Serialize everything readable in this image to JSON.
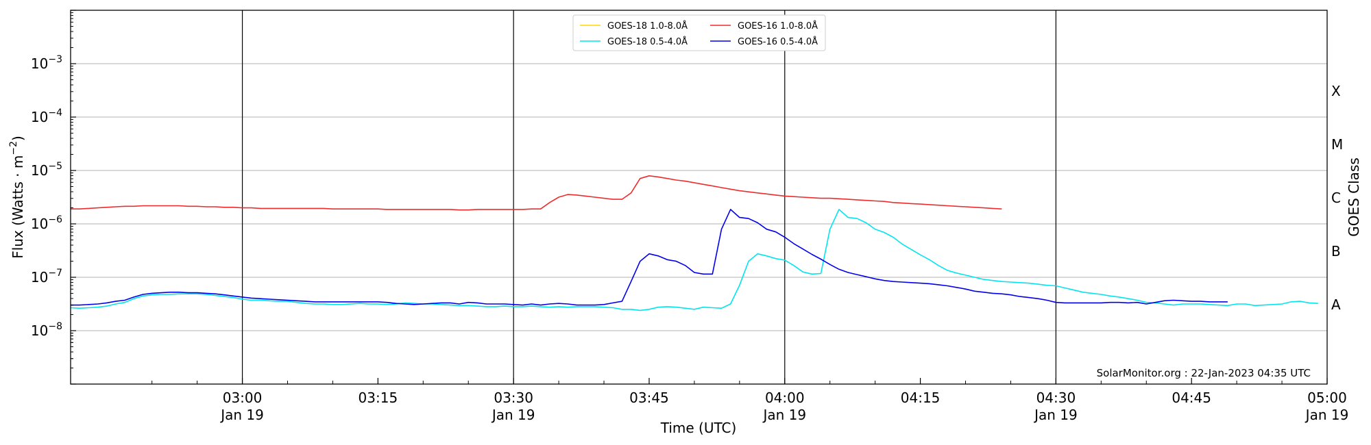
{
  "chart_data": {
    "type": "line",
    "xlabel": "Time (UTC)",
    "ylabel": "Flux (Watts · m",
    "ylabel_sup": "−2",
    "ylabel_close": ")",
    "right_label": "GOES Class",
    "y_scale": "log",
    "ylim": [
      1e-09,
      0.01
    ],
    "xlim_minutes": [
      161,
      300
    ],
    "grid": "y-major",
    "legend_position": "top-center",
    "x_ticks": [
      {
        "minute": 180,
        "time": "03:00",
        "date": "Jan 19"
      },
      {
        "minute": 195,
        "time": "03:15",
        "date": ""
      },
      {
        "minute": 210,
        "time": "03:30",
        "date": "Jan 19"
      },
      {
        "minute": 225,
        "time": "03:45",
        "date": ""
      },
      {
        "minute": 240,
        "time": "04:00",
        "date": "Jan 19"
      },
      {
        "minute": 255,
        "time": "04:15",
        "date": ""
      },
      {
        "minute": 270,
        "time": "04:30",
        "date": "Jan 19"
      },
      {
        "minute": 285,
        "time": "04:45",
        "date": ""
      },
      {
        "minute": 300,
        "time": "05:00",
        "date": "Jan 19"
      }
    ],
    "y_ticks": [
      {
        "exp": -8,
        "base": "10",
        "sup": "−8"
      },
      {
        "exp": -7,
        "base": "10",
        "sup": "−7"
      },
      {
        "exp": -6,
        "base": "10",
        "sup": "−6"
      },
      {
        "exp": -5,
        "base": "10",
        "sup": "−5"
      },
      {
        "exp": -4,
        "base": "10",
        "sup": "−4"
      },
      {
        "exp": -3,
        "base": "10",
        "sup": "−3"
      }
    ],
    "goes_classes": [
      {
        "label": "A",
        "exp": -7.5
      },
      {
        "label": "B",
        "exp": -6.5
      },
      {
        "label": "C",
        "exp": -5.5
      },
      {
        "label": "M",
        "exp": -4.5
      },
      {
        "label": "X",
        "exp": -3.5
      }
    ],
    "vlines_minutes": [
      180,
      210,
      240,
      270
    ],
    "annotation": "SolarMonitor.org : 22-Jan-2023 04:35 UTC",
    "x_minutes": [
      161,
      162,
      163,
      164,
      165,
      166,
      167,
      168,
      169,
      170,
      171,
      172,
      173,
      174,
      175,
      176,
      177,
      178,
      179,
      180,
      181,
      182,
      183,
      184,
      185,
      186,
      187,
      188,
      189,
      190,
      191,
      192,
      193,
      194,
      195,
      196,
      197,
      198,
      199,
      200,
      201,
      202,
      203,
      204,
      205,
      206,
      207,
      208,
      209,
      210,
      211,
      212,
      213,
      214,
      215,
      216,
      217,
      218,
      219,
      220,
      221,
      222,
      223,
      224,
      225,
      226,
      227,
      228,
      229,
      230,
      231,
      232,
      233,
      234,
      235,
      236,
      237,
      238,
      239,
      240,
      241,
      242,
      243,
      244,
      245,
      246,
      247,
      248,
      249,
      250,
      251,
      252,
      253,
      254,
      255,
      256,
      257,
      258,
      259,
      260,
      261,
      262,
      263,
      264,
      265,
      266,
      267,
      268,
      269,
      270,
      271,
      272,
      273,
      274,
      275,
      276,
      277,
      278,
      279,
      280,
      281,
      282,
      283,
      284,
      285,
      286,
      287,
      288,
      289,
      290,
      291,
      292,
      293,
      294,
      295,
      296,
      297,
      298,
      299
    ],
    "series": [
      {
        "name": "GOES-18 1.0-8.0Å",
        "color": "#ffd700",
        "log_values": []
      },
      {
        "name": "GOES-18 0.5-4.0Å",
        "color": "#00e5ee",
        "log_values": [
          -7.57,
          -7.58,
          -7.57,
          -7.56,
          -7.54,
          -7.5,
          -7.47,
          -7.4,
          -7.35,
          -7.33,
          -7.32,
          -7.32,
          -7.31,
          -7.31,
          -7.31,
          -7.32,
          -7.34,
          -7.36,
          -7.38,
          -7.41,
          -7.43,
          -7.43,
          -7.44,
          -7.45,
          -7.45,
          -7.47,
          -7.49,
          -7.5,
          -7.5,
          -7.51,
          -7.51,
          -7.5,
          -7.49,
          -7.5,
          -7.5,
          -7.51,
          -7.5,
          -7.48,
          -7.49,
          -7.5,
          -7.5,
          -7.51,
          -7.52,
          -7.53,
          -7.53,
          -7.54,
          -7.55,
          -7.55,
          -7.54,
          -7.55,
          -7.55,
          -7.54,
          -7.55,
          -7.56,
          -7.55,
          -7.56,
          -7.55,
          -7.55,
          -7.55,
          -7.56,
          -7.57,
          -7.6,
          -7.6,
          -7.62,
          -7.6,
          -7.56,
          -7.55,
          -7.56,
          -7.58,
          -7.6,
          -7.56,
          -7.57,
          -7.58,
          -7.5,
          -7.15,
          -6.7,
          -6.56,
          -6.6,
          -6.65,
          -6.68,
          -6.78,
          -6.9,
          -6.94,
          -6.93,
          -6.1,
          -5.73,
          -5.88,
          -5.9,
          -5.98,
          -6.1,
          -6.16,
          -6.25,
          -6.38,
          -6.48,
          -6.58,
          -6.67,
          -6.78,
          -6.87,
          -6.92,
          -6.96,
          -7.0,
          -7.04,
          -7.06,
          -7.08,
          -7.09,
          -7.1,
          -7.11,
          -7.13,
          -7.15,
          -7.16,
          -7.2,
          -7.24,
          -7.28,
          -7.3,
          -7.32,
          -7.35,
          -7.37,
          -7.4,
          -7.43,
          -7.47,
          -7.48,
          -7.5,
          -7.52,
          -7.5,
          -7.5,
          -7.5,
          -7.51,
          -7.52,
          -7.53,
          -7.5,
          -7.5,
          -7.53,
          -7.52,
          -7.51,
          -7.5,
          -7.46,
          -7.45,
          -7.48,
          -7.49
        ]
      },
      {
        "name": "GOES-16 1.0-8.0Å",
        "color": "#ee2c2c",
        "log_values": [
          -5.72,
          -5.72,
          -5.71,
          -5.7,
          -5.69,
          -5.68,
          -5.67,
          -5.67,
          -5.66,
          -5.66,
          -5.66,
          -5.66,
          -5.66,
          -5.67,
          -5.67,
          -5.68,
          -5.68,
          -5.69,
          -5.69,
          -5.7,
          -5.7,
          -5.71,
          -5.71,
          -5.71,
          -5.71,
          -5.71,
          -5.71,
          -5.71,
          -5.71,
          -5.72,
          -5.72,
          -5.72,
          -5.72,
          -5.72,
          -5.72,
          -5.73,
          -5.73,
          -5.73,
          -5.73,
          -5.73,
          -5.73,
          -5.73,
          -5.73,
          -5.74,
          -5.74,
          -5.73,
          -5.73,
          -5.73,
          -5.73,
          -5.73,
          -5.73,
          -5.72,
          -5.72,
          -5.6,
          -5.5,
          -5.45,
          -5.46,
          -5.48,
          -5.5,
          -5.52,
          -5.54,
          -5.54,
          -5.42,
          -5.15,
          -5.1,
          -5.12,
          -5.15,
          -5.18,
          -5.2,
          -5.23,
          -5.26,
          -5.29,
          -5.32,
          -5.35,
          -5.38,
          -5.4,
          -5.42,
          -5.44,
          -5.46,
          -5.48,
          -5.49,
          -5.5,
          -5.51,
          -5.52,
          -5.52,
          -5.53,
          -5.54,
          -5.55,
          -5.56,
          -5.57,
          -5.58,
          -5.6,
          -5.61,
          -5.62,
          -5.63,
          -5.64,
          -5.65,
          -5.66,
          -5.67,
          -5.68,
          -5.69,
          -5.7,
          -5.71,
          -5.72
        ]
      },
      {
        "name": "GOES-16 0.5-4.0Å",
        "color": "#0000ee",
        "log_values": [
          -7.52,
          -7.52,
          -7.51,
          -7.5,
          -7.48,
          -7.45,
          -7.43,
          -7.37,
          -7.32,
          -7.3,
          -7.29,
          -7.28,
          -7.28,
          -7.29,
          -7.29,
          -7.3,
          -7.31,
          -7.33,
          -7.35,
          -7.37,
          -7.39,
          -7.4,
          -7.41,
          -7.42,
          -7.43,
          -7.44,
          -7.45,
          -7.46,
          -7.46,
          -7.46,
          -7.46,
          -7.46,
          -7.46,
          -7.46,
          -7.46,
          -7.47,
          -7.49,
          -7.5,
          -7.51,
          -7.5,
          -7.49,
          -7.48,
          -7.48,
          -7.5,
          -7.47,
          -7.48,
          -7.5,
          -7.5,
          -7.5,
          -7.51,
          -7.52,
          -7.5,
          -7.52,
          -7.5,
          -7.49,
          -7.5,
          -7.52,
          -7.52,
          -7.52,
          -7.51,
          -7.48,
          -7.45,
          -7.08,
          -6.7,
          -6.56,
          -6.6,
          -6.67,
          -6.7,
          -6.78,
          -6.91,
          -6.94,
          -6.94,
          -6.1,
          -5.73,
          -5.88,
          -5.9,
          -5.98,
          -6.1,
          -6.15,
          -6.25,
          -6.37,
          -6.47,
          -6.57,
          -6.66,
          -6.76,
          -6.85,
          -6.91,
          -6.95,
          -6.99,
          -7.03,
          -7.06,
          -7.08,
          -7.09,
          -7.1,
          -7.11,
          -7.12,
          -7.14,
          -7.16,
          -7.19,
          -7.22,
          -7.26,
          -7.28,
          -7.3,
          -7.31,
          -7.33,
          -7.36,
          -7.38,
          -7.4,
          -7.43,
          -7.47,
          -7.48,
          -7.48,
          -7.48,
          -7.48,
          -7.48,
          -7.47,
          -7.47,
          -7.48,
          -7.47,
          -7.5,
          -7.47,
          -7.44,
          -7.43,
          -7.44,
          -7.45,
          -7.45,
          -7.46,
          -7.46,
          -7.46
        ]
      }
    ]
  }
}
